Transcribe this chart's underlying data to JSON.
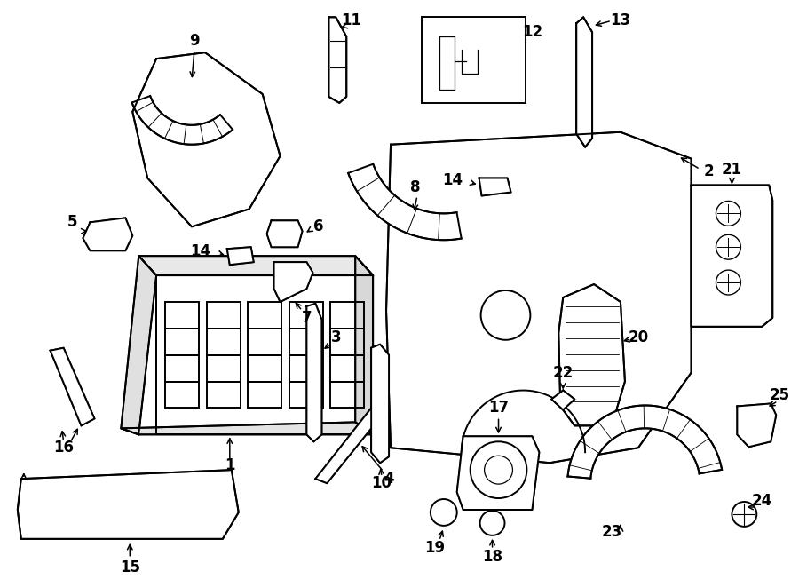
{
  "bg_color": "#ffffff",
  "lc": "#000000",
  "lw": 1.4,
  "fs": 12,
  "fw": "bold"
}
